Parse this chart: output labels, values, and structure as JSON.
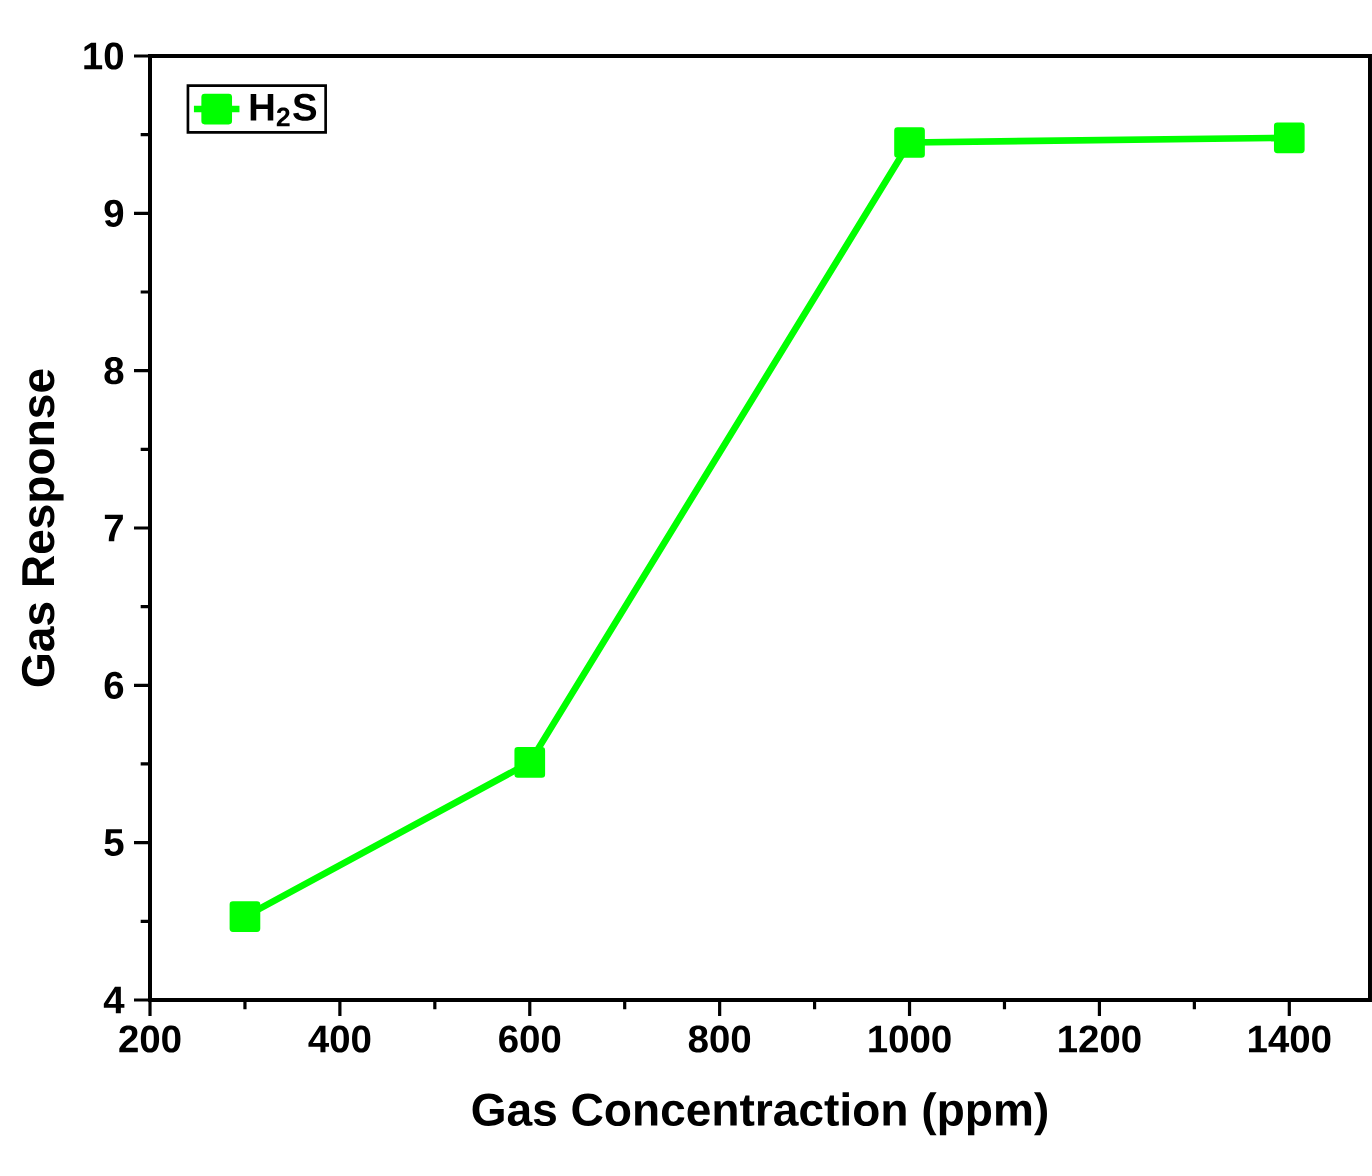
{
  "chart_data": {
    "type": "line",
    "xlabel": "Gas Concentraction (ppm)",
    "ylabel": "Gas Response",
    "x": [
      300,
      600,
      1000,
      1400
    ],
    "series": [
      {
        "name": "H$_{2}$S",
        "color": "#00ff00",
        "values": [
          4.53,
          5.51,
          9.45,
          9.48
        ]
      }
    ],
    "xlim": [
      200,
      1485
    ],
    "ylim": [
      4,
      10
    ],
    "xticks": [
      200,
      400,
      600,
      800,
      1000,
      1200,
      1400
    ],
    "yticks": [
      4,
      5,
      6,
      7,
      8,
      9,
      10
    ],
    "legend": "top left",
    "marker": "square",
    "line_style": "solid",
    "grid": false
  }
}
